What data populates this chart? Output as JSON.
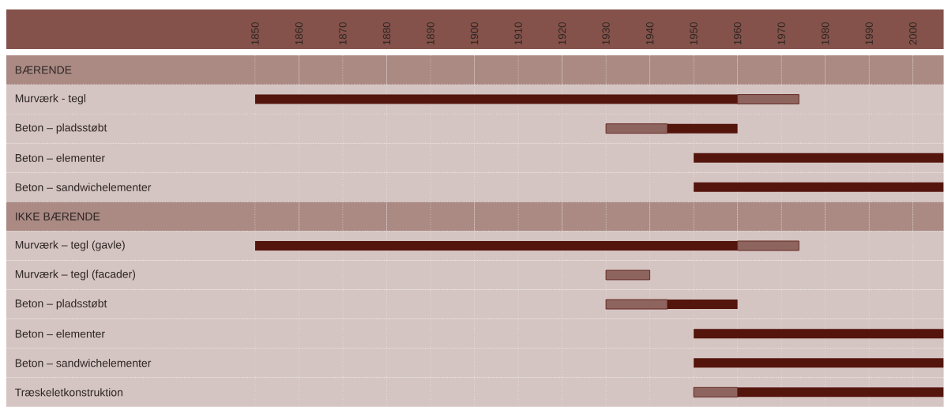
{
  "chart_data": {
    "type": "bar",
    "orientation": "horizontal",
    "categories": [
      "BÆRENDE",
      "Murværk - tegl",
      "Beton – pladsstøbt",
      "Beton – elementer",
      "Beton – sandwichelementer",
      "IKKE BÆRENDE",
      "Murværk – tegl (gavle)",
      "Murværk – tegl (facader)",
      "Beton – pladsstøbt",
      "Beton – elementer",
      "Beton – sandwichelementer",
      "Træskeletkonstruktion"
    ],
    "series": [
      {
        "color": "#54150d",
        "base": [
          null,
          1850,
          1944,
          1950,
          1950,
          null,
          1850,
          null,
          1944,
          1950,
          1950,
          1960
        ],
        "values": [
          null,
          110,
          16,
          57,
          57,
          null,
          110,
          null,
          16,
          57,
          57,
          47
        ]
      },
      {
        "color": "#54150d",
        "line_style": "dashed",
        "base": [
          null,
          1960,
          1930,
          null,
          null,
          null,
          1960,
          1930,
          1930,
          null,
          null,
          1950
        ],
        "values": [
          null,
          14,
          14,
          null,
          null,
          null,
          14,
          10,
          14,
          null,
          null,
          10
        ]
      }
    ],
    "xlim": [
      1850,
      2007
    ],
    "xticks": [
      1850,
      1860,
      1870,
      1880,
      1890,
      1900,
      1910,
      1920,
      1930,
      1940,
      1950,
      1960,
      1970,
      1980,
      1990,
      2000
    ],
    "grid": true
  }
}
